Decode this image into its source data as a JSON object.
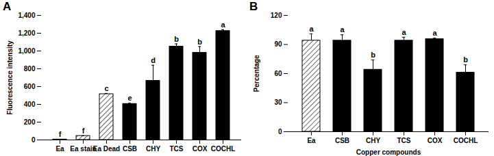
{
  "chart_data": [
    {
      "type": "bar",
      "title": "A",
      "categories": [
        "Ea",
        "Ea stain",
        "Ea Dead",
        "CSB",
        "CHY",
        "TCS",
        "COX",
        "COCHL"
      ],
      "values": [
        5,
        45,
        515,
        405,
        665,
        1050,
        980,
        1225
      ],
      "errors": [
        2,
        3,
        8,
        8,
        175,
        30,
        70,
        15
      ],
      "annotations": [
        "f",
        "f",
        "c",
        "e",
        "d",
        "b",
        "b",
        "a"
      ],
      "colors": [
        "#ffffff",
        "#ffffff",
        "#ffffff",
        "#000000",
        "#000000",
        "#000000",
        "#000000",
        "#000000"
      ],
      "y_label": "Fluorescence intensity",
      "ylim": [
        0,
        1400
      ],
      "yticks": [
        0,
        200,
        400,
        600,
        800,
        {
          "value": 1000,
          "label": "1,000"
        },
        {
          "value": 1200,
          "label": "1,200"
        },
        {
          "value": 1400,
          "label": "1,400"
        }
      ]
    },
    {
      "type": "bar",
      "title": "B",
      "categories": [
        "Ea",
        "CSB",
        "CHY",
        "TCS",
        "COX",
        "COCHL"
      ],
      "values": [
        94,
        94,
        64,
        94,
        95.5,
        61
      ],
      "errors": [
        7,
        6,
        10,
        3.5,
        1,
        8
      ],
      "annotations": [
        "a",
        "a",
        "b",
        "a",
        "a",
        "b"
      ],
      "colors": [
        "#ffffff",
        "#000000",
        "#000000",
        "#000000",
        "#000000",
        "#000000"
      ],
      "y_label": "Percentage",
      "x_label": "Copper compounds",
      "ylim": [
        0,
        120
      ],
      "yticks": [
        0,
        30,
        60,
        90,
        120
      ]
    }
  ]
}
